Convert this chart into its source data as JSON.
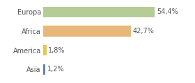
{
  "categories": [
    "Europa",
    "Africa",
    "America",
    "Asia"
  ],
  "values": [
    54.4,
    42.7,
    1.8,
    1.2
  ],
  "labels": [
    "54,4%",
    "42,7%",
    "1,8%",
    "1,2%"
  ],
  "bar_colors": [
    "#b5cc96",
    "#e8b87a",
    "#e8c84a",
    "#6080c8"
  ],
  "background_color": "#ffffff",
  "xlim": [
    0,
    72
  ],
  "bar_height": 0.55,
  "label_fontsize": 7,
  "tick_fontsize": 7
}
